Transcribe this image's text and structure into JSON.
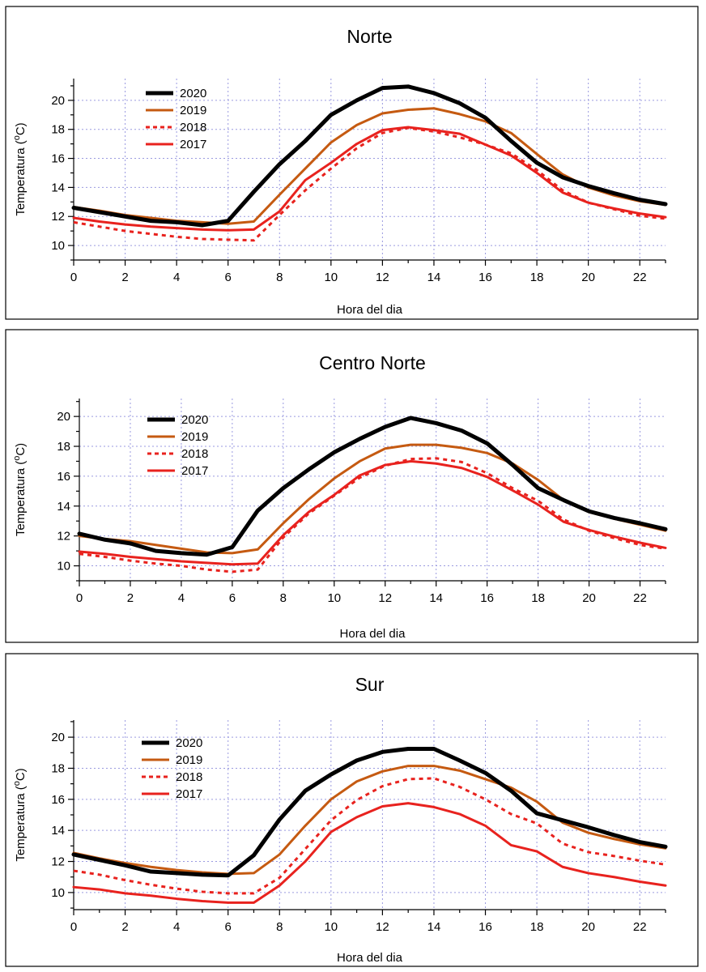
{
  "chart_data": [
    {
      "type": "line",
      "title": "Norte",
      "xlabel": "Hora del dia",
      "ylabel": "Temperatura (°C)",
      "ylabel_text": "Temperatura (",
      "ylabel_sup": "o",
      "ylabel_unit": "C)",
      "xlim": [
        0,
        23
      ],
      "ylim": [
        9,
        21.5
      ],
      "xticks": [
        0,
        2,
        4,
        6,
        8,
        10,
        12,
        14,
        16,
        18,
        20,
        22
      ],
      "yticks": [
        10,
        12,
        14,
        16,
        18,
        20
      ],
      "grid": true,
      "legend": "upper-left",
      "x": [
        0,
        1,
        2,
        3,
        4,
        5,
        6,
        7,
        8,
        9,
        10,
        11,
        12,
        13,
        14,
        15,
        16,
        17,
        18,
        19,
        20,
        21,
        22,
        23
      ],
      "series": [
        {
          "name": "2020",
          "color": "#000000",
          "style": "solid",
          "values": [
            12.6,
            12.3,
            12.0,
            11.7,
            11.6,
            11.4,
            11.7,
            13.7,
            15.6,
            17.2,
            19.0,
            20.0,
            20.85,
            20.95,
            20.5,
            19.8,
            18.8,
            17.2,
            15.7,
            14.7,
            14.1,
            13.6,
            13.15,
            12.85
          ]
        },
        {
          "name": "2019",
          "color": "#c55a11",
          "style": "solid",
          "values": [
            12.65,
            12.4,
            12.1,
            11.9,
            11.7,
            11.6,
            11.5,
            11.65,
            13.5,
            15.3,
            17.1,
            18.3,
            19.1,
            19.35,
            19.45,
            19.05,
            18.55,
            17.75,
            16.3,
            14.9,
            14.0,
            13.45,
            13.05,
            12.8
          ]
        },
        {
          "name": "2018",
          "color": "#e8221e",
          "style": "dashed",
          "values": [
            11.6,
            11.3,
            11.0,
            10.8,
            10.6,
            10.45,
            10.4,
            10.35,
            12.1,
            13.8,
            15.3,
            16.7,
            17.75,
            18.1,
            17.85,
            17.45,
            16.95,
            16.35,
            15.2,
            13.8,
            12.95,
            12.5,
            12.05,
            11.85
          ]
        },
        {
          "name": "2017",
          "color": "#e8221e",
          "style": "solid",
          "values": [
            11.9,
            11.65,
            11.45,
            11.3,
            11.2,
            11.1,
            11.05,
            11.1,
            12.35,
            14.5,
            15.7,
            17.0,
            17.95,
            18.15,
            17.95,
            17.7,
            16.95,
            16.2,
            15.0,
            13.65,
            12.95,
            12.55,
            12.2,
            11.95
          ]
        }
      ]
    },
    {
      "type": "line",
      "title": "Centro Norte",
      "xlabel": "Hora del dia",
      "ylabel": "Temperatura (°C)",
      "ylabel_text": "Temperatura (",
      "ylabel_sup": "o",
      "ylabel_unit": "C)",
      "xlim": [
        0,
        23
      ],
      "ylim": [
        9,
        21.2
      ],
      "xticks": [
        0,
        2,
        4,
        6,
        8,
        10,
        12,
        14,
        16,
        18,
        20,
        22
      ],
      "yticks": [
        10,
        12,
        14,
        16,
        18,
        20
      ],
      "grid": true,
      "legend": "upper-left",
      "x": [
        0,
        1,
        2,
        3,
        4,
        5,
        6,
        7,
        8,
        9,
        10,
        11,
        12,
        13,
        14,
        15,
        16,
        17,
        18,
        19,
        20,
        21,
        22,
        23
      ],
      "series": [
        {
          "name": "2020",
          "color": "#000000",
          "style": "solid",
          "values": [
            12.15,
            11.75,
            11.5,
            11.0,
            10.85,
            10.75,
            11.25,
            13.7,
            15.2,
            16.45,
            17.6,
            18.5,
            19.3,
            19.9,
            19.55,
            19.05,
            18.2,
            16.75,
            15.2,
            14.4,
            13.65,
            13.2,
            12.85,
            12.45
          ]
        },
        {
          "name": "2019",
          "color": "#c55a11",
          "style": "solid",
          "values": [
            12.0,
            11.8,
            11.65,
            11.4,
            11.15,
            10.9,
            10.85,
            11.1,
            12.85,
            14.45,
            15.85,
            17.0,
            17.85,
            18.1,
            18.1,
            17.9,
            17.55,
            16.85,
            15.75,
            14.4,
            13.6,
            13.15,
            12.75,
            12.35
          ]
        },
        {
          "name": "2018",
          "color": "#e8221e",
          "style": "dashed",
          "values": [
            10.8,
            10.6,
            10.35,
            10.15,
            10.0,
            9.75,
            9.6,
            9.75,
            11.9,
            13.5,
            14.7,
            15.9,
            16.7,
            17.15,
            17.2,
            16.95,
            16.2,
            15.2,
            14.35,
            13.1,
            12.35,
            11.85,
            11.4,
            11.15
          ]
        },
        {
          "name": "2017",
          "color": "#e8221e",
          "style": "solid",
          "values": [
            10.95,
            10.8,
            10.6,
            10.45,
            10.3,
            10.2,
            10.1,
            10.15,
            12.05,
            13.6,
            14.75,
            16.05,
            16.75,
            17.0,
            16.85,
            16.55,
            15.95,
            15.05,
            14.1,
            12.95,
            12.4,
            11.95,
            11.55,
            11.2
          ]
        }
      ]
    },
    {
      "type": "line",
      "title": "Sur",
      "xlabel": "Hora del dia",
      "ylabel": "Temperatura (°C)",
      "ylabel_text": "Temperatura (",
      "ylabel_sup": "o",
      "ylabel_unit": "C)",
      "xlim": [
        0,
        23
      ],
      "ylim": [
        8.9,
        21.1
      ],
      "xticks": [
        0,
        2,
        4,
        6,
        8,
        10,
        12,
        14,
        16,
        18,
        20,
        22
      ],
      "yticks": [
        10,
        12,
        14,
        16,
        18,
        20
      ],
      "grid": true,
      "legend": "upper-left",
      "x": [
        0,
        1,
        2,
        3,
        4,
        5,
        6,
        7,
        8,
        9,
        10,
        11,
        12,
        13,
        14,
        15,
        16,
        17,
        18,
        19,
        20,
        21,
        22,
        23
      ],
      "series": [
        {
          "name": "2020",
          "color": "#000000",
          "style": "solid",
          "values": [
            12.45,
            12.1,
            11.75,
            11.35,
            11.25,
            11.15,
            11.1,
            12.4,
            14.7,
            16.55,
            17.6,
            18.5,
            19.05,
            19.25,
            19.25,
            18.5,
            17.7,
            16.55,
            15.1,
            14.65,
            14.2,
            13.7,
            13.25,
            12.95
          ]
        },
        {
          "name": "2019",
          "color": "#c55a11",
          "style": "solid",
          "values": [
            12.55,
            12.2,
            11.9,
            11.65,
            11.45,
            11.3,
            11.2,
            11.25,
            12.45,
            14.3,
            16.0,
            17.15,
            17.8,
            18.15,
            18.15,
            17.85,
            17.3,
            16.75,
            15.85,
            14.5,
            13.85,
            13.45,
            13.1,
            12.85
          ]
        },
        {
          "name": "2018",
          "color": "#e8221e",
          "style": "dashed",
          "values": [
            11.4,
            11.15,
            10.8,
            10.5,
            10.25,
            10.05,
            9.95,
            9.95,
            10.95,
            12.8,
            14.65,
            15.95,
            16.85,
            17.3,
            17.35,
            16.8,
            16.0,
            15.05,
            14.45,
            13.15,
            12.6,
            12.35,
            12.05,
            11.8
          ]
        },
        {
          "name": "2017",
          "color": "#e8221e",
          "style": "solid",
          "values": [
            10.35,
            10.2,
            9.95,
            9.8,
            9.6,
            9.45,
            9.35,
            9.35,
            10.45,
            12.0,
            13.9,
            14.85,
            15.55,
            15.75,
            15.5,
            15.05,
            14.3,
            13.05,
            12.65,
            11.65,
            11.25,
            11.0,
            10.7,
            10.45
          ]
        }
      ]
    }
  ]
}
